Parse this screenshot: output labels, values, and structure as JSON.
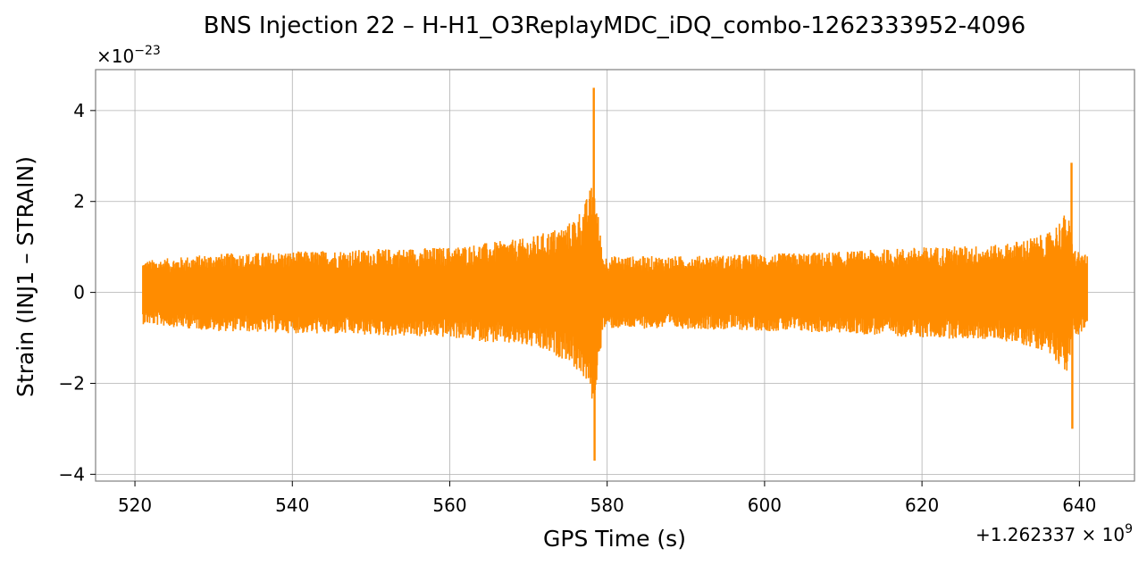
{
  "chart_data": {
    "type": "line",
    "title": "BNS Injection 22 – H-H1_O3ReplayMDC_iDQ_combo-1262333952-4096",
    "xlabel": "GPS Time (s)",
    "ylabel": "Strain (INJ1 – STRAIN)",
    "x_offset_label": "+1.262337 × 10",
    "x_offset_exponent": "9",
    "y_scale_label": "×10",
    "y_scale_exponent": "−23",
    "xlim": [
      515,
      647
    ],
    "ylim": [
      -4.15,
      4.9
    ],
    "xticks": [
      520,
      540,
      560,
      580,
      600,
      620,
      640
    ],
    "xtick_labels": [
      "520",
      "540",
      "560",
      "580",
      "600",
      "620",
      "640"
    ],
    "yticks": [
      -4,
      -2,
      0,
      2,
      4
    ],
    "ytick_labels": [
      "−4",
      "−2",
      "0",
      "2",
      "4"
    ],
    "grid": true,
    "series": [
      {
        "color": "#ff8c00",
        "x_range": [
          521,
          641
        ],
        "envelope": [
          [
            521,
            0.7
          ],
          [
            530,
            0.85
          ],
          [
            540,
            0.9
          ],
          [
            550,
            0.95
          ],
          [
            560,
            1.0
          ],
          [
            570,
            1.2
          ],
          [
            575,
            1.5
          ],
          [
            577,
            1.9
          ],
          [
            578.3,
            2.5
          ],
          [
            579.5,
            0.8
          ],
          [
            590,
            0.8
          ],
          [
            600,
            0.85
          ],
          [
            610,
            0.9
          ],
          [
            620,
            1.0
          ],
          [
            630,
            1.05
          ],
          [
            636,
            1.3
          ],
          [
            638.5,
            1.8
          ],
          [
            639.2,
            1.0
          ],
          [
            641,
            0.8
          ]
        ],
        "peaks": [
          {
            "x": 578.3,
            "y": 4.5
          },
          {
            "x": 578.4,
            "y": -3.7
          },
          {
            "x": 639.0,
            "y": 2.85
          },
          {
            "x": 639.1,
            "y": -3.0
          }
        ]
      }
    ]
  }
}
